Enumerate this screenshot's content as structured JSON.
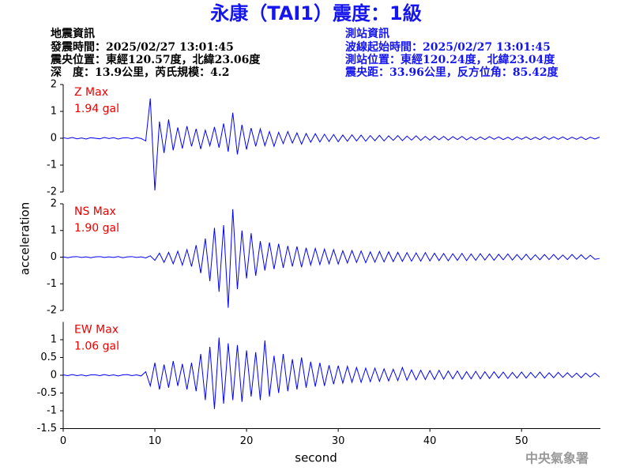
{
  "header": {
    "title": "永康（TAI1）震度：1級",
    "left": [
      "地震資訊",
      "發震時間：2025/02/27 13:01:45",
      "震央位置：東經120.57度，北緯23.06度",
      "深　度：13.9公里，芮氏規模：4.2"
    ],
    "right": [
      "測站資訊",
      "波線起始時間：2025/02/27 13:01:45",
      "測站位置：東經120.24度，北緯23.04度",
      "震央距：33.96公里，反方位角：85.42度"
    ]
  },
  "y_label": "acceleration",
  "footer": "中央氣象署",
  "chart_data": [
    {
      "type": "line",
      "annotation": [
        "Z Max",
        "1.94 gal"
      ],
      "color": "#0000ff",
      "ylim": [
        -2,
        2
      ],
      "yticks": [
        -2,
        -1,
        0,
        1,
        2
      ],
      "xlim": [
        0,
        58.6
      ],
      "x": [
        0,
        0.5,
        1,
        1.5,
        2,
        2.5,
        3,
        3.5,
        4,
        4.5,
        5,
        5.5,
        6,
        6.5,
        7,
        7.5,
        8,
        8.5,
        9,
        9.5,
        10,
        10.5,
        11,
        11.5,
        12,
        12.5,
        13,
        13.5,
        14,
        14.5,
        15,
        15.5,
        16,
        16.5,
        17,
        17.5,
        18,
        18.5,
        19,
        19.5,
        20,
        20.5,
        21,
        21.5,
        22,
        22.5,
        23,
        23.5,
        24,
        24.5,
        25,
        25.5,
        26,
        26.5,
        27,
        27.5,
        28,
        28.5,
        29,
        29.5,
        30,
        30.5,
        31,
        31.5,
        32,
        32.5,
        33,
        33.5,
        34,
        34.5,
        35,
        35.5,
        36,
        36.5,
        37,
        37.5,
        38,
        38.5,
        39,
        39.5,
        40,
        40.5,
        41,
        41.5,
        42,
        42.5,
        43,
        43.5,
        44,
        44.5,
        45,
        45.5,
        46,
        46.5,
        47,
        47.5,
        48,
        48.5,
        49,
        49.5,
        50,
        50.5,
        51,
        51.5,
        52,
        52.5,
        53,
        53.5,
        54,
        54.5,
        55,
        55.5,
        56,
        56.5,
        57,
        57.5,
        58,
        58.5
      ],
      "values": [
        0.02,
        -0.01,
        0.03,
        -0.02,
        0.01,
        -0.03,
        0.02,
        0.0,
        -0.02,
        0.03,
        -0.01,
        0.02,
        -0.03,
        0.01,
        0.02,
        -0.02,
        0.03,
        -0.01,
        -0.1,
        1.48,
        -1.94,
        0.62,
        -0.55,
        0.7,
        -0.45,
        0.4,
        -0.38,
        0.45,
        -0.3,
        0.35,
        -0.4,
        0.3,
        -0.28,
        0.42,
        -0.35,
        0.55,
        -0.5,
        0.95,
        -0.6,
        0.5,
        -0.42,
        0.38,
        -0.3,
        0.35,
        -0.28,
        0.25,
        -0.3,
        0.22,
        -0.2,
        0.25,
        -0.18,
        0.2,
        -0.22,
        0.18,
        -0.15,
        0.17,
        -0.14,
        0.15,
        -0.12,
        0.14,
        -0.13,
        0.12,
        -0.11,
        0.13,
        -0.1,
        0.12,
        -0.11,
        0.1,
        -0.09,
        0.11,
        -0.1,
        0.09,
        -0.08,
        0.1,
        -0.09,
        0.08,
        -0.07,
        0.09,
        -0.08,
        0.07,
        -0.07,
        0.08,
        -0.06,
        0.07,
        -0.07,
        0.06,
        -0.05,
        0.07,
        -0.06,
        0.05,
        -0.06,
        0.05,
        -0.05,
        0.06,
        -0.04,
        0.05,
        -0.05,
        0.04,
        -0.06,
        0.05,
        -0.04,
        0.05,
        -0.05,
        0.04,
        -0.05,
        0.06,
        -0.04,
        0.05,
        -0.04,
        0.05,
        -0.05,
        0.04,
        -0.04,
        0.05,
        -0.05,
        0.04,
        -0.03,
        0.04
      ]
    },
    {
      "type": "line",
      "annotation": [
        "NS Max",
        "1.90 gal"
      ],
      "color": "#0000ff",
      "ylim": [
        -2,
        2
      ],
      "yticks": [
        -2,
        -1,
        0,
        1,
        2
      ],
      "xlim": [
        0,
        58.6
      ],
      "x": [
        0,
        0.5,
        1,
        1.5,
        2,
        2.5,
        3,
        3.5,
        4,
        4.5,
        5,
        5.5,
        6,
        6.5,
        7,
        7.5,
        8,
        8.5,
        9,
        9.5,
        10,
        10.5,
        11,
        11.5,
        12,
        12.5,
        13,
        13.5,
        14,
        14.5,
        15,
        15.5,
        16,
        16.5,
        17,
        17.5,
        18,
        18.5,
        19,
        19.5,
        20,
        20.5,
        21,
        21.5,
        22,
        22.5,
        23,
        23.5,
        24,
        24.5,
        25,
        25.5,
        26,
        26.5,
        27,
        27.5,
        28,
        28.5,
        29,
        29.5,
        30,
        30.5,
        31,
        31.5,
        32,
        32.5,
        33,
        33.5,
        34,
        34.5,
        35,
        35.5,
        36,
        36.5,
        37,
        37.5,
        38,
        38.5,
        39,
        39.5,
        40,
        40.5,
        41,
        41.5,
        42,
        42.5,
        43,
        43.5,
        44,
        44.5,
        45,
        45.5,
        46,
        46.5,
        47,
        47.5,
        48,
        48.5,
        49,
        49.5,
        50,
        50.5,
        51,
        51.5,
        52,
        52.5,
        53,
        53.5,
        54,
        54.5,
        55,
        55.5,
        56,
        56.5,
        57,
        57.5,
        58,
        58.5
      ],
      "values": [
        0.01,
        -0.02,
        0.01,
        0.02,
        -0.01,
        0.01,
        -0.02,
        0.01,
        0.02,
        -0.01,
        0.01,
        -0.01,
        0.02,
        -0.02,
        0.01,
        0.02,
        -0.01,
        0.01,
        -0.03,
        0.05,
        -0.12,
        0.15,
        -0.2,
        0.18,
        -0.25,
        0.22,
        -0.3,
        0.28,
        -0.35,
        0.45,
        -0.6,
        0.7,
        -0.9,
        1.1,
        -1.3,
        1.2,
        -1.9,
        1.8,
        -1.2,
        1.0,
        -0.8,
        0.9,
        -0.7,
        0.6,
        -0.5,
        0.55,
        -0.45,
        0.5,
        -0.4,
        0.42,
        -0.35,
        0.4,
        -0.38,
        0.35,
        -0.3,
        0.33,
        -0.28,
        0.3,
        -0.25,
        0.28,
        -0.26,
        0.24,
        -0.22,
        0.25,
        -0.2,
        0.23,
        -0.21,
        0.2,
        -0.19,
        0.21,
        -0.18,
        0.2,
        -0.17,
        0.18,
        -0.16,
        0.17,
        -0.15,
        0.16,
        -0.15,
        0.17,
        -0.14,
        0.15,
        -0.13,
        0.14,
        -0.14,
        0.13,
        -0.12,
        0.14,
        -0.13,
        0.12,
        -0.12,
        0.13,
        -0.11,
        0.12,
        -0.12,
        0.11,
        -0.1,
        0.12,
        -0.11,
        0.1,
        -0.1,
        0.11,
        -0.1,
        0.09,
        -0.1,
        0.1,
        -0.09,
        0.1,
        -0.09,
        0.08,
        -0.09,
        0.1,
        -0.08,
        0.09,
        -0.08,
        0.07,
        -0.08,
        -0.05
      ]
    },
    {
      "type": "line",
      "annotation": [
        "EW Max",
        "1.06 gal"
      ],
      "color": "#0000ff",
      "ylim": [
        -1.5,
        1.5
      ],
      "yticks": [
        -1.5,
        -1,
        -0.5,
        0,
        0.5,
        1
      ],
      "xlim": [
        0,
        58.6
      ],
      "xticks": [
        0,
        10,
        20,
        30,
        40,
        50
      ],
      "x_label": "second",
      "x": [
        0,
        0.5,
        1,
        1.5,
        2,
        2.5,
        3,
        3.5,
        4,
        4.5,
        5,
        5.5,
        6,
        6.5,
        7,
        7.5,
        8,
        8.5,
        9,
        9.5,
        10,
        10.5,
        11,
        11.5,
        12,
        12.5,
        13,
        13.5,
        14,
        14.5,
        15,
        15.5,
        16,
        16.5,
        17,
        17.5,
        18,
        18.5,
        19,
        19.5,
        20,
        20.5,
        21,
        21.5,
        22,
        22.5,
        23,
        23.5,
        24,
        24.5,
        25,
        25.5,
        26,
        26.5,
        27,
        27.5,
        28,
        28.5,
        29,
        29.5,
        30,
        30.5,
        31,
        31.5,
        32,
        32.5,
        33,
        33.5,
        34,
        34.5,
        35,
        35.5,
        36,
        36.5,
        37,
        37.5,
        38,
        38.5,
        39,
        39.5,
        40,
        40.5,
        41,
        41.5,
        42,
        42.5,
        43,
        43.5,
        44,
        44.5,
        45,
        45.5,
        46,
        46.5,
        47,
        47.5,
        48,
        48.5,
        49,
        49.5,
        50,
        50.5,
        51,
        51.5,
        52,
        52.5,
        53,
        53.5,
        54,
        54.5,
        55,
        55.5,
        56,
        56.5,
        57,
        57.5,
        58,
        58.5
      ],
      "values": [
        0.01,
        -0.01,
        0.02,
        -0.01,
        0.01,
        -0.02,
        0.01,
        0.01,
        -0.01,
        0.02,
        -0.01,
        0.01,
        -0.02,
        0.01,
        0.02,
        -0.01,
        0.01,
        -0.02,
        0.1,
        -0.3,
        0.35,
        -0.4,
        0.3,
        -0.35,
        0.4,
        -0.3,
        0.32,
        -0.4,
        0.35,
        -0.45,
        0.6,
        -0.7,
        0.8,
        -0.95,
        1.06,
        -0.8,
        0.9,
        -0.7,
        0.85,
        -0.75,
        0.7,
        -0.6,
        0.65,
        -0.7,
        0.98,
        -0.6,
        0.55,
        -0.5,
        0.6,
        -0.45,
        0.45,
        -0.4,
        0.5,
        -0.35,
        0.38,
        -0.32,
        0.35,
        -0.3,
        0.28,
        -0.25,
        0.27,
        -0.22,
        0.25,
        -0.2,
        0.22,
        -0.2,
        0.2,
        -0.18,
        0.2,
        -0.17,
        0.18,
        -0.16,
        0.17,
        -0.15,
        0.22,
        -0.14,
        0.15,
        -0.13,
        0.14,
        -0.12,
        0.13,
        -0.12,
        0.14,
        -0.11,
        0.12,
        -0.1,
        0.12,
        -0.11,
        0.1,
        -0.1,
        0.11,
        -0.1,
        0.1,
        -0.09,
        0.1,
        -0.08,
        0.09,
        -0.09,
        0.08,
        -0.08,
        0.09,
        -0.08,
        0.08,
        -0.07,
        0.09,
        -0.08,
        0.07,
        -0.07,
        0.08,
        -0.06,
        0.07,
        -0.06,
        0.06,
        -0.07,
        0.06,
        -0.05,
        0.06,
        -0.05
      ]
    }
  ]
}
